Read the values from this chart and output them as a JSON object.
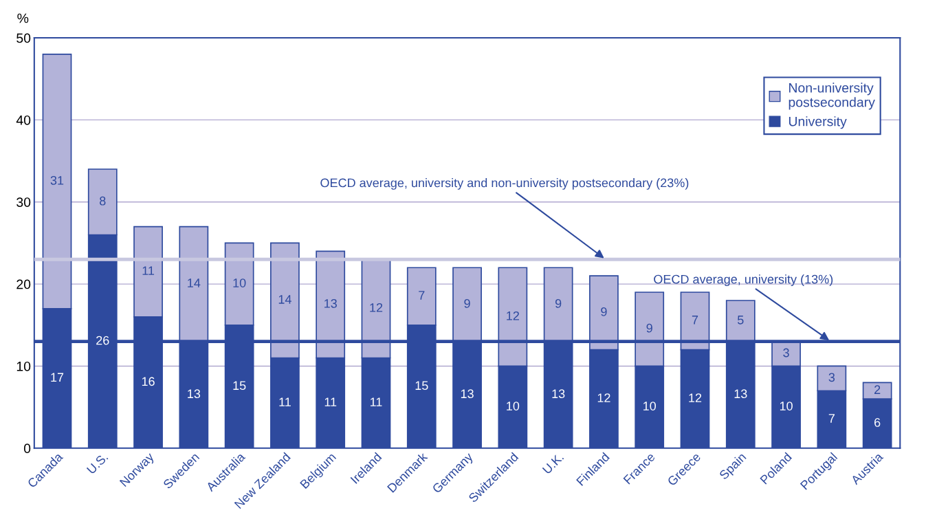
{
  "chart_data": {
    "type": "bar",
    "stacked": true,
    "ylabel": "%",
    "categories": [
      "Canada",
      "U.S.",
      "Norway",
      "Sweden",
      "Australia",
      "New Zealand",
      "Belgium",
      "Ireland",
      "Denmark",
      "Germany",
      "Switzerland",
      "U.K.",
      "Finland",
      "France",
      "Greece",
      "Spain",
      "Poland",
      "Portugal",
      "Austria"
    ],
    "series": [
      {
        "name": "University",
        "color": "#2e4a9e",
        "values": [
          17,
          26,
          16,
          13,
          15,
          11,
          11,
          11,
          15,
          13,
          10,
          13,
          12,
          10,
          12,
          13,
          10,
          7,
          6
        ]
      },
      {
        "name": "Non-university\npostsecondary",
        "color": "#b3b3d9",
        "values": [
          31,
          8,
          11,
          14,
          10,
          14,
          13,
          12,
          7,
          9,
          12,
          9,
          9,
          9,
          7,
          5,
          3,
          3,
          2
        ]
      }
    ],
    "ylim": [
      0,
      50
    ],
    "yticks": [
      0,
      10,
      20,
      30,
      40,
      50
    ],
    "grid": "y",
    "legend": "top right",
    "data_labels": true,
    "ref_lines": [
      {
        "axis": "y",
        "value": 23,
        "label": "OECD average, university and non-university postsecondary (23%)",
        "color": "#c8c8e0"
      },
      {
        "axis": "y",
        "value": 13,
        "label": "OECD average, university (13%)",
        "color": "#2e4a9e"
      }
    ]
  }
}
